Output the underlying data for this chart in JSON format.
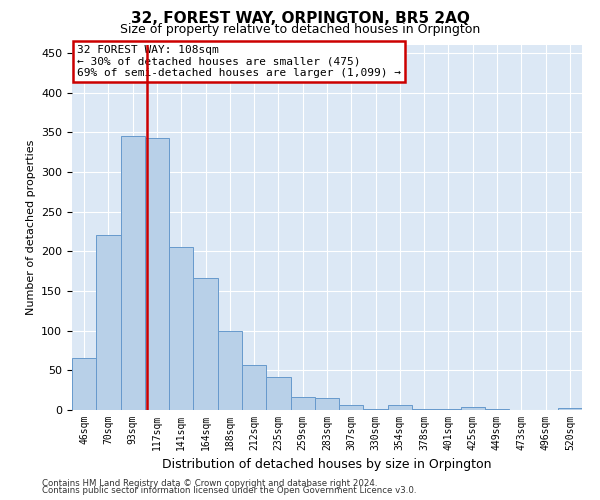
{
  "title": "32, FOREST WAY, ORPINGTON, BR5 2AQ",
  "subtitle": "Size of property relative to detached houses in Orpington",
  "xlabel": "Distribution of detached houses by size in Orpington",
  "ylabel": "Number of detached properties",
  "bar_labels": [
    "46sqm",
    "70sqm",
    "93sqm",
    "117sqm",
    "141sqm",
    "164sqm",
    "188sqm",
    "212sqm",
    "235sqm",
    "259sqm",
    "283sqm",
    "307sqm",
    "330sqm",
    "354sqm",
    "378sqm",
    "401sqm",
    "425sqm",
    "449sqm",
    "473sqm",
    "496sqm",
    "520sqm"
  ],
  "bar_values": [
    66,
    220,
    345,
    343,
    206,
    166,
    99,
    57,
    41,
    16,
    15,
    6,
    1,
    6,
    1,
    1,
    4,
    1,
    0,
    0,
    3
  ],
  "bar_color": "#b8d0e8",
  "bar_edgecolor": "#6699cc",
  "vline_color": "#cc0000",
  "annotation_line1": "32 FOREST WAY: 108sqm",
  "annotation_line2": "← 30% of detached houses are smaller (475)",
  "annotation_line3": "69% of semi-detached houses are larger (1,099) →",
  "annotation_box_color": "#cc0000",
  "ylim": [
    0,
    460
  ],
  "yticks": [
    0,
    50,
    100,
    150,
    200,
    250,
    300,
    350,
    400,
    450
  ],
  "bg_color": "#dce8f5",
  "grid_color": "#ffffff",
  "footnote_line1": "Contains HM Land Registry data © Crown copyright and database right 2024.",
  "footnote_line2": "Contains public sector information licensed under the Open Government Licence v3.0.",
  "title_fontsize": 11,
  "subtitle_fontsize": 9,
  "ylabel_fontsize": 8,
  "xlabel_fontsize": 9,
  "tick_fontsize": 7,
  "annot_fontsize": 8
}
